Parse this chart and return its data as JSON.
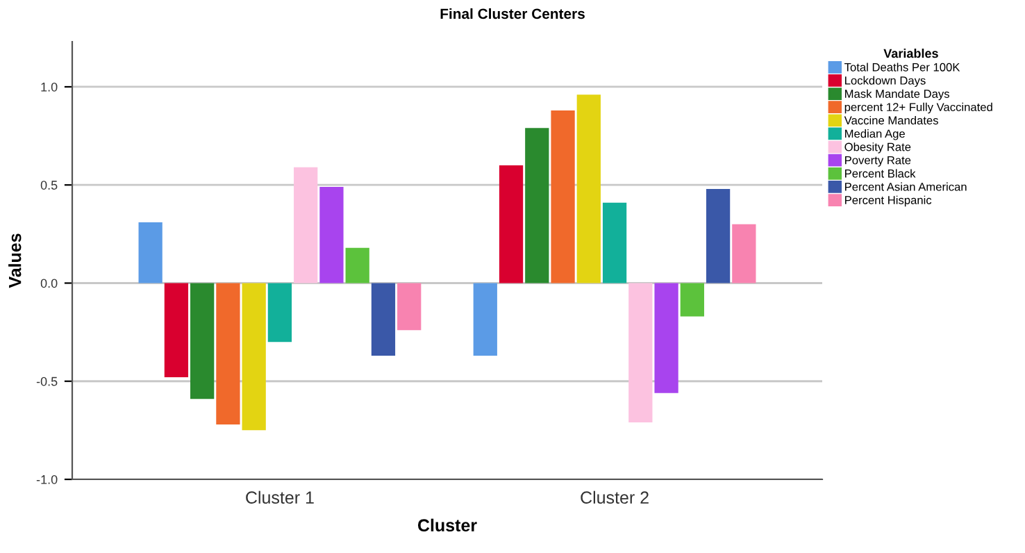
{
  "chart_data": {
    "type": "bar",
    "title": "Final Cluster Centers",
    "xlabel": "Cluster",
    "ylabel": "Values",
    "legend_title": "Variables",
    "categories": [
      "Cluster 1",
      "Cluster 2"
    ],
    "series": [
      {
        "name": "Total Deaths Per 100K",
        "color": "#5b9be6",
        "values": [
          0.31,
          -0.37
        ]
      },
      {
        "name": "Lockdown Days",
        "color": "#d9002f",
        "values": [
          -0.48,
          0.6
        ]
      },
      {
        "name": "Mask Mandate Days",
        "color": "#2a8a2e",
        "values": [
          -0.59,
          0.79
        ]
      },
      {
        "name": "percent 12+ Fully Vaccinated",
        "color": "#f0692b",
        "values": [
          -0.72,
          0.88
        ]
      },
      {
        "name": "Vaccine Mandates",
        "color": "#e3d412",
        "values": [
          -0.75,
          0.96
        ]
      },
      {
        "name": "Median Age",
        "color": "#12b09a",
        "values": [
          -0.3,
          0.41
        ]
      },
      {
        "name": "Obesity Rate",
        "color": "#fcc2e0",
        "values": [
          0.59,
          -0.71
        ]
      },
      {
        "name": "Poverty Rate",
        "color": "#a844ee",
        "values": [
          0.49,
          -0.56
        ]
      },
      {
        "name": "Percent Black",
        "color": "#5cc23c",
        "values": [
          0.18,
          -0.17
        ]
      },
      {
        "name": "Percent Asian American",
        "color": "#3a58a8",
        "values": [
          -0.37,
          0.48
        ]
      },
      {
        "name": "Percent Hispanic",
        "color": "#f883b0",
        "values": [
          -0.24,
          0.3
        ]
      }
    ],
    "ylim": [
      -1.0,
      1.23
    ],
    "yticks": [
      {
        "value": -1.0,
        "label": "-1.0"
      },
      {
        "value": -0.5,
        "label": "-0.5"
      },
      {
        "value": 0.0,
        "label": "0.0"
      },
      {
        "value": 0.5,
        "label": "0.5"
      },
      {
        "value": 1.0,
        "label": "1.0"
      }
    ],
    "grid": "y",
    "legend": "top right"
  }
}
